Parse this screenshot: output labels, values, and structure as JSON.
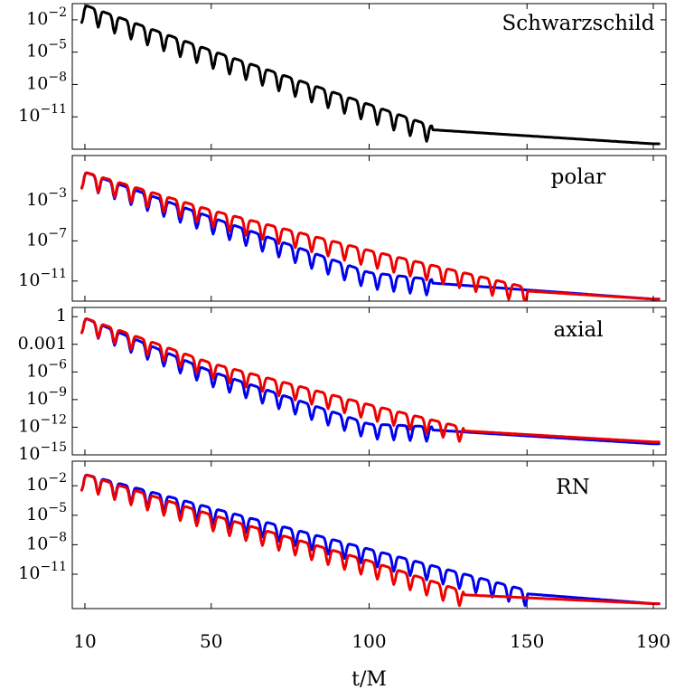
{
  "chart_data": [
    {
      "type": "line",
      "panel_label": "Schwarzschild",
      "y_scale": "log",
      "ylim_log10": [
        -14,
        -0.5
      ],
      "ytick_labels": [
        "10^-2",
        "10^-5",
        "10^-8",
        "10^-11"
      ],
      "ytick_log10": [
        -2,
        -5,
        -8,
        -11
      ],
      "series": [
        {
          "color": "#000000",
          "x": [
            10,
            50,
            100,
            120,
            190
          ],
          "log10_y": [
            -1.0,
            -5.2,
            -10.2,
            -12.2,
            -13.5
          ]
        }
      ]
    },
    {
      "type": "line",
      "panel_label": "polar",
      "y_scale": "log",
      "ylim_log10": [
        -13,
        1.5
      ],
      "ytick_labels": [
        "10^-3",
        "10^-7",
        "10^-11"
      ],
      "ytick_log10": [
        -3,
        -7,
        -11
      ],
      "series": [
        {
          "color": "#0000ee",
          "x": [
            10,
            50,
            100,
            120,
            190
          ],
          "log10_y": [
            -0.5,
            -5.0,
            -10.5,
            -11.2,
            -12.8
          ]
        },
        {
          "color": "#ee0000",
          "x": [
            10,
            50,
            100,
            150,
            190
          ],
          "log10_y": [
            -0.5,
            -4.3,
            -8.3,
            -12.0,
            -12.8
          ]
        }
      ]
    },
    {
      "type": "line",
      "panel_label": "axial",
      "y_scale": "log",
      "ylim_log10": [
        -15,
        1
      ],
      "ytick_labels": [
        "1",
        "0.001",
        "10^-6",
        "10^-9",
        "10^-12",
        "10^-15"
      ],
      "ytick_log10": [
        0,
        -3,
        -6,
        -9,
        -12,
        -15
      ],
      "series": [
        {
          "color": "#0000ee",
          "x": [
            10,
            50,
            100,
            120,
            190
          ],
          "log10_y": [
            -0.5,
            -6.3,
            -12.0,
            -12.3,
            -13.8
          ]
        },
        {
          "color": "#ee0000",
          "x": [
            10,
            50,
            100,
            130,
            190
          ],
          "log10_y": [
            -0.5,
            -5.4,
            -9.9,
            -12.4,
            -13.6
          ]
        }
      ]
    },
    {
      "type": "line",
      "panel_label": "RN",
      "y_scale": "log",
      "ylim_log10": [
        -14.5,
        0.5
      ],
      "ytick_labels": [
        "10^-2",
        "10^-5",
        "10^-8",
        "10^-11"
      ],
      "ytick_log10": [
        -2,
        -5,
        -8,
        -11
      ],
      "series": [
        {
          "color": "#0000ee",
          "x": [
            10,
            50,
            100,
            150,
            190
          ],
          "log10_y": [
            -1.2,
            -4.6,
            -8.8,
            -13.0,
            -14.0
          ]
        },
        {
          "color": "#ee0000",
          "x": [
            10,
            50,
            100,
            130,
            190
          ],
          "log10_y": [
            -1.2,
            -5.3,
            -10.0,
            -13.1,
            -14.0
          ]
        }
      ]
    }
  ],
  "x_axis": {
    "label": "t/M",
    "xlim": [
      6,
      194
    ],
    "tick_values": [
      10,
      50,
      100,
      150,
      190
    ],
    "tick_labels": [
      "10",
      "50",
      "100",
      "150",
      "190"
    ]
  }
}
